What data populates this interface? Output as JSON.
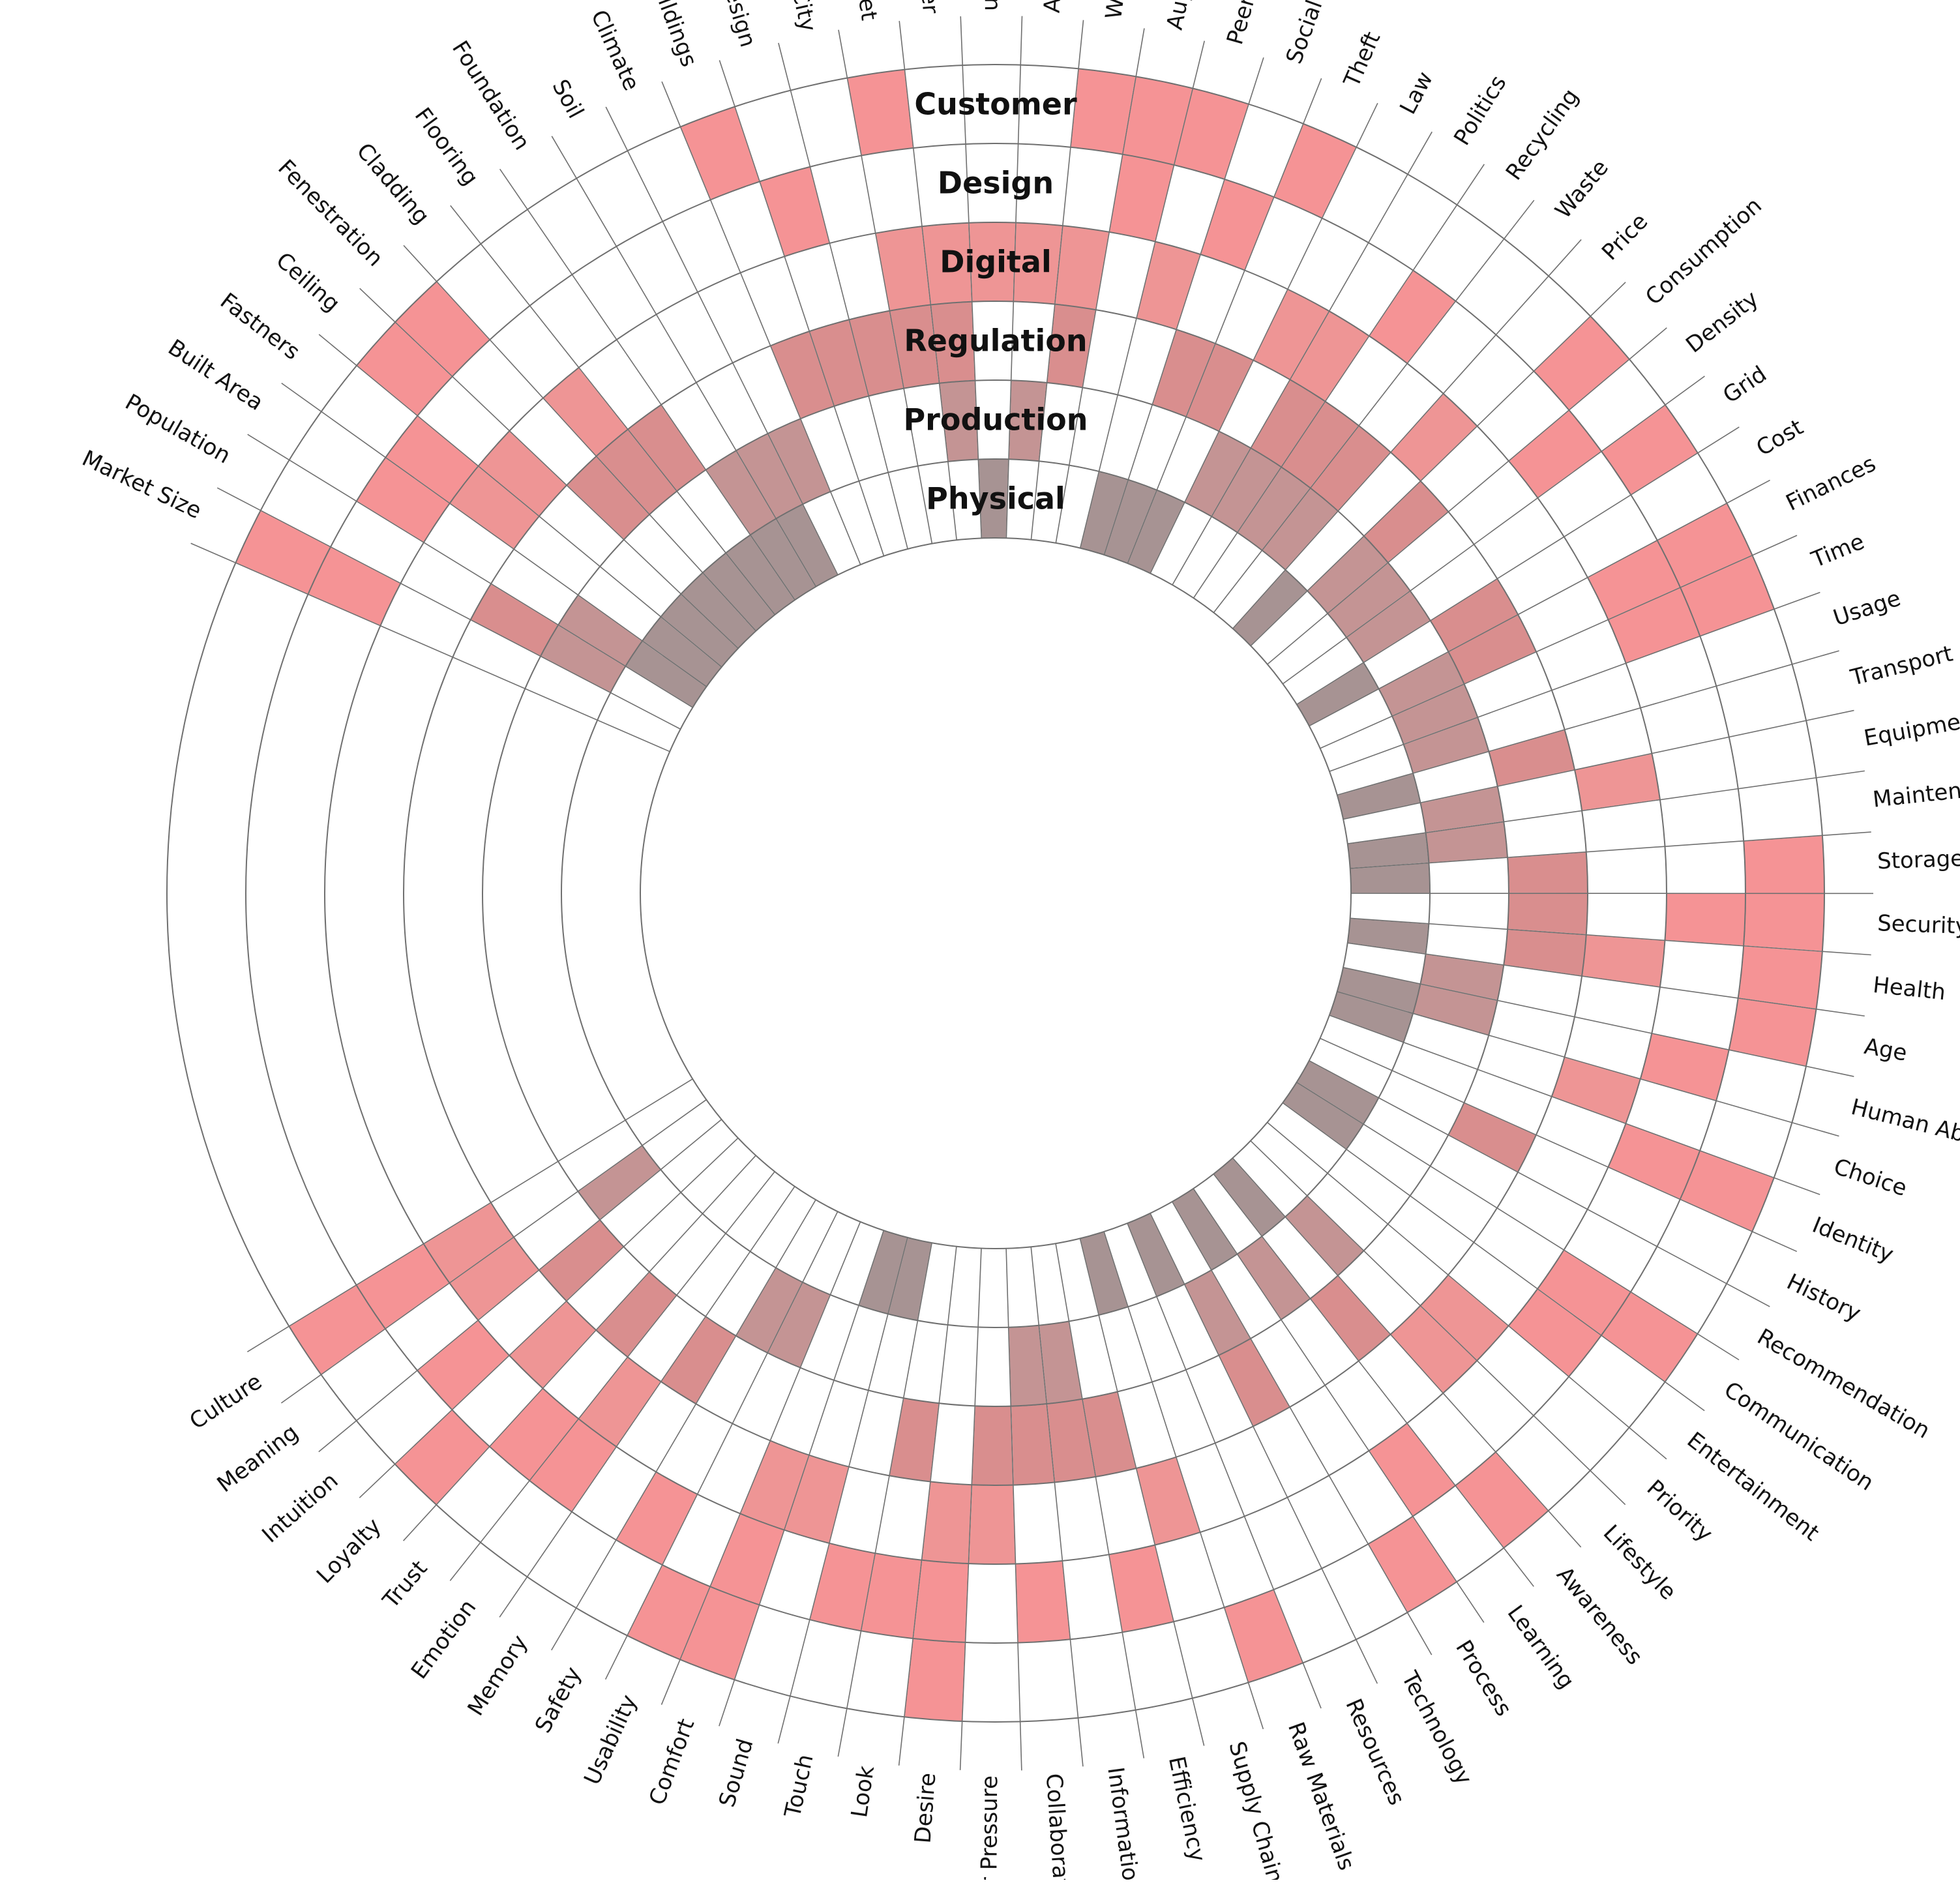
{
  "rings": [
    "Customer",
    "Design",
    "Digital",
    "Regulation",
    "Production",
    "Physical"
  ],
  "colors": {
    "Customer": "#f59395",
    "Design": "#f59395",
    "Digital": "#ee9595",
    "Regulation": "#d98e8e",
    "Production": "#c49494",
    "Physical": "#a79393",
    "line": "#6f6f6f"
  },
  "topics": [
    {
      "label": "Market Size",
      "filled": [
        "Customer",
        "Design"
      ]
    },
    {
      "label": "Population",
      "filled": [
        "Regulation",
        "Production"
      ]
    },
    {
      "label": "Built Area",
      "filled": [
        "Design",
        "Production",
        "Physical"
      ]
    },
    {
      "label": "Fastners",
      "filled": [
        "Design",
        "Digital",
        "Physical"
      ]
    },
    {
      "label": "Ceiling",
      "filled": [
        "Customer",
        "Digital",
        "Physical"
      ]
    },
    {
      "label": "Fenestration",
      "filled": [
        "Customer",
        "Regulation",
        "Physical"
      ]
    },
    {
      "label": "Cladding",
      "filled": [
        "Digital",
        "Regulation",
        "Physical"
      ]
    },
    {
      "label": "Flooring",
      "filled": [
        "Regulation",
        "Physical"
      ]
    },
    {
      "label": "Foundation",
      "filled": [
        "Production",
        "Physical"
      ]
    },
    {
      "label": "Soil",
      "filled": [
        "Production",
        "Physical"
      ]
    },
    {
      "label": "Climate",
      "filled": [
        "Production"
      ]
    },
    {
      "label": "Buildings",
      "filled": [
        "Customer",
        "Regulation"
      ]
    },
    {
      "label": "Urban Design",
      "filled": [
        "Design",
        "Regulation"
      ]
    },
    {
      "label": "City",
      "filled": [
        "Regulation"
      ]
    },
    {
      "label": "Internet",
      "filled": [
        "Customer",
        "Digital",
        "Regulation"
      ]
    },
    {
      "label": "Server",
      "filled": [
        "Digital",
        "Regulation",
        "Production"
      ]
    },
    {
      "label": "Connection",
      "filled": [
        "Digital",
        "Physical"
      ]
    },
    {
      "label": "Access",
      "filled": [
        "Digital",
        "Production"
      ]
    },
    {
      "label": "Work",
      "filled": [
        "Customer",
        "Digital",
        "Regulation"
      ]
    },
    {
      "label": "Augmentation",
      "filled": [
        "Customer",
        "Design"
      ]
    },
    {
      "label": "Peer Products",
      "filled": [
        "Customer",
        "Digital",
        "Physical"
      ]
    },
    {
      "label": "Social Networks",
      "filled": [
        "Design",
        "Regulation",
        "Physical"
      ]
    },
    {
      "label": "Theft",
      "filled": [
        "Customer",
        "Regulation",
        "Physical"
      ]
    },
    {
      "label": "Law",
      "filled": [
        "Digital",
        "Production"
      ]
    },
    {
      "label": "Politics",
      "filled": [
        "Digital",
        "Regulation",
        "Production"
      ]
    },
    {
      "label": "Recycling",
      "filled": [
        "Design",
        "Regulation",
        "Production"
      ]
    },
    {
      "label": "Waste",
      "filled": [
        "Regulation",
        "Production"
      ]
    },
    {
      "label": "Price",
      "filled": [
        "Digital",
        "Physical"
      ]
    },
    {
      "label": "Consumption",
      "filled": [
        "Customer",
        "Regulation",
        "Production"
      ]
    },
    {
      "label": "Density",
      "filled": [
        "Design",
        "Production"
      ]
    },
    {
      "label": "Grid",
      "filled": [
        "Customer",
        "Production"
      ]
    },
    {
      "label": "Cost",
      "filled": [
        "Regulation",
        "Physical"
      ]
    },
    {
      "label": "Finances",
      "filled": [
        "Customer",
        "Design",
        "Regulation",
        "Production"
      ]
    },
    {
      "label": "Time",
      "filled": [
        "Customer",
        "Design",
        "Production"
      ]
    },
    {
      "label": "Usage",
      "filled": [
        "Production"
      ]
    },
    {
      "label": "Transport",
      "filled": [
        "Regulation",
        "Physical"
      ]
    },
    {
      "label": "Equipment",
      "filled": [
        "Digital",
        "Production"
      ]
    },
    {
      "label": "Maintenance",
      "filled": [
        "Production",
        "Physical"
      ]
    },
    {
      "label": "Storage",
      "filled": [
        "Customer",
        "Regulation",
        "Physical"
      ]
    },
    {
      "label": "Security",
      "filled": [
        "Customer",
        "Design",
        "Regulation"
      ]
    },
    {
      "label": "Health",
      "filled": [
        "Customer",
        "Digital",
        "Regulation",
        "Physical"
      ]
    },
    {
      "label": "Age",
      "filled": [
        "Customer",
        "Production"
      ]
    },
    {
      "label": "Human Ability",
      "filled": [
        "Design",
        "Production",
        "Physical"
      ]
    },
    {
      "label": "Choice",
      "filled": [
        "Digital",
        "Physical"
      ]
    },
    {
      "label": "Identity",
      "filled": [
        "Customer",
        "Design"
      ]
    },
    {
      "label": "History",
      "filled": [
        "Regulation"
      ]
    },
    {
      "label": "Recommendation",
      "filled": [
        "Physical"
      ]
    },
    {
      "label": "Communication",
      "filled": [
        "Customer",
        "Design",
        "Physical"
      ]
    },
    {
      "label": "Entertainment",
      "filled": [
        "Design"
      ]
    },
    {
      "label": "Priority",
      "filled": [
        "Digital"
      ]
    },
    {
      "label": "Lifestyle",
      "filled": [
        "Digital",
        "Production"
      ]
    },
    {
      "label": "Awareness",
      "filled": [
        "Customer",
        "Regulation",
        "Physical"
      ]
    },
    {
      "label": "Learning",
      "filled": [
        "Design",
        "Production"
      ]
    },
    {
      "label": "Process",
      "filled": [
        "Customer",
        "Physical"
      ]
    },
    {
      "label": "Technology",
      "filled": [
        "Regulation",
        "Production"
      ]
    },
    {
      "label": "Resources",
      "filled": [
        "Physical"
      ]
    },
    {
      "label": "Raw Materials",
      "filled": [
        "Customer"
      ]
    },
    {
      "label": "Supply Chain",
      "filled": [
        "Digital",
        "Physical"
      ]
    },
    {
      "label": "Efficiency",
      "filled": [
        "Design",
        "Regulation"
      ]
    },
    {
      "label": "Information",
      "filled": [
        "Regulation",
        "Production"
      ]
    },
    {
      "label": "Collaboration",
      "filled": [
        "Design",
        "Regulation",
        "Production"
      ]
    },
    {
      "label": "Peer Pressure",
      "filled": [
        "Digital",
        "Regulation"
      ]
    },
    {
      "label": "Desire",
      "filled": [
        "Customer",
        "Design",
        "Digital"
      ]
    },
    {
      "label": "Look",
      "filled": [
        "Design",
        "Regulation"
      ]
    },
    {
      "label": "Touch",
      "filled": [
        "Design",
        "Physical"
      ]
    },
    {
      "label": "Sound",
      "filled": [
        "Digital",
        "Physical"
      ]
    },
    {
      "label": "Comfort",
      "filled": [
        "Customer",
        "Design",
        "Digital"
      ]
    },
    {
      "label": "Usability",
      "filled": [
        "Customer",
        "Production"
      ]
    },
    {
      "label": "Safety",
      "filled": [
        "Design",
        "Production"
      ]
    },
    {
      "label": "Memory",
      "filled": [
        "Regulation"
      ]
    },
    {
      "label": "Emotion",
      "filled": [
        "Design",
        "Digital"
      ]
    },
    {
      "label": "Trust",
      "filled": [
        "Design",
        "Regulation"
      ]
    },
    {
      "label": "Loyalty",
      "filled": [
        "Customer",
        "Digital"
      ]
    },
    {
      "label": "Intuition",
      "filled": [
        "Design",
        "Regulation"
      ]
    },
    {
      "label": "Meaning",
      "filled": [
        "Digital",
        "Production"
      ]
    },
    {
      "label": "Culture",
      "filled": [
        "Customer",
        "Design",
        "Digital"
      ]
    }
  ]
}
